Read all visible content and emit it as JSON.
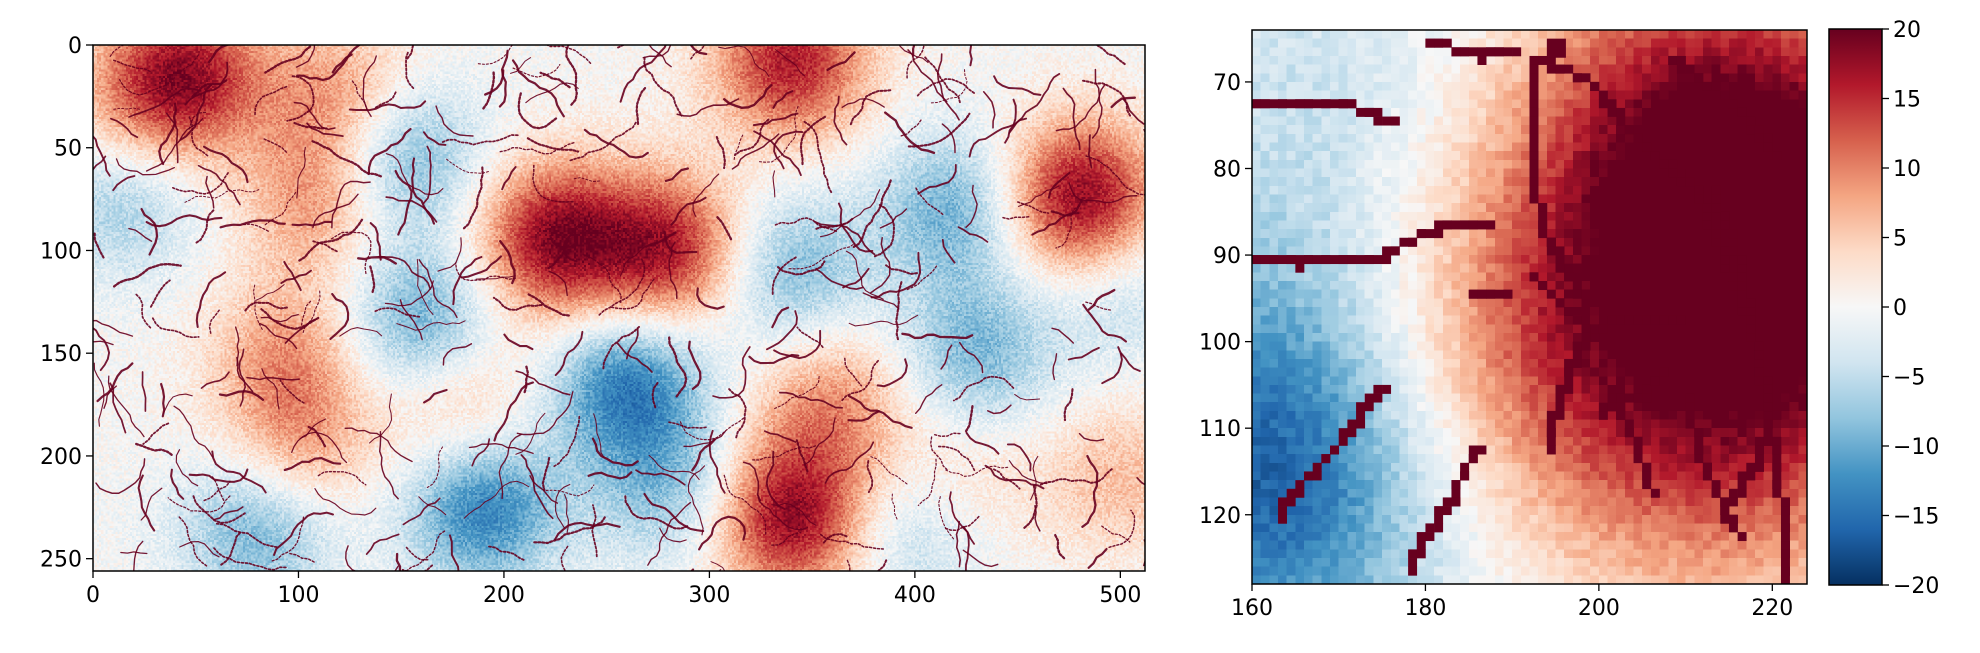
{
  "colormap": {
    "name": "RdBu_r",
    "stops": [
      "#053061",
      "#2166ac",
      "#4393c3",
      "#92c5de",
      "#d1e5f0",
      "#f7f7f7",
      "#fddbc7",
      "#f4a582",
      "#d6604d",
      "#b2182b",
      "#67001f"
    ]
  },
  "chart_data": [
    {
      "type": "heatmap",
      "title": "",
      "xlabel": "",
      "ylabel": "",
      "xlim": [
        0,
        512
      ],
      "ylim": [
        256,
        0
      ],
      "xticks": [
        0,
        100,
        200,
        300,
        400,
        500
      ],
      "yticks": [
        0,
        50,
        100,
        150,
        200,
        250
      ],
      "value_range": [
        -20,
        20
      ],
      "hot_spots": [
        {
          "x": 45,
          "y": 15,
          "v": 16
        },
        {
          "x": 120,
          "y": 25,
          "v": 9
        },
        {
          "x": 340,
          "y": 8,
          "v": 16
        },
        {
          "x": 110,
          "y": 75,
          "v": 9
        },
        {
          "x": 225,
          "y": 95,
          "v": 18
        },
        {
          "x": 280,
          "y": 100,
          "v": 16
        },
        {
          "x": 480,
          "y": 75,
          "v": 19
        },
        {
          "x": 95,
          "y": 150,
          "v": 8
        },
        {
          "x": 180,
          "y": 175,
          "v": 7
        },
        {
          "x": 360,
          "y": 175,
          "v": 9
        },
        {
          "x": 100,
          "y": 195,
          "v": 8
        },
        {
          "x": 340,
          "y": 230,
          "v": 18
        },
        {
          "x": 420,
          "y": 215,
          "v": 5
        },
        {
          "x": 500,
          "y": 210,
          "v": 6
        },
        {
          "x": 20,
          "y": 30,
          "v": 5
        }
      ],
      "cold_spots": [
        {
          "x": 150,
          "y": 55,
          "v": -11
        },
        {
          "x": 15,
          "y": 75,
          "v": -7
        },
        {
          "x": 420,
          "y": 80,
          "v": -10
        },
        {
          "x": 340,
          "y": 110,
          "v": -9
        },
        {
          "x": 160,
          "y": 135,
          "v": -11
        },
        {
          "x": 260,
          "y": 165,
          "v": -14
        },
        {
          "x": 430,
          "y": 150,
          "v": -9
        },
        {
          "x": 190,
          "y": 225,
          "v": -14
        },
        {
          "x": 80,
          "y": 235,
          "v": -10
        },
        {
          "x": 280,
          "y": 215,
          "v": -8
        },
        {
          "x": 400,
          "y": 235,
          "v": -7
        },
        {
          "x": 500,
          "y": 120,
          "v": -5
        }
      ]
    },
    {
      "type": "heatmap",
      "title": "",
      "xlabel": "",
      "ylabel": "",
      "xlim": [
        160,
        224
      ],
      "ylim": [
        128,
        64
      ],
      "xticks": [
        160,
        180,
        200,
        220
      ],
      "yticks": [
        70,
        80,
        90,
        100,
        110,
        120
      ],
      "value_range": [
        -20,
        20
      ],
      "hot_spots": [
        {
          "x": 222,
          "y": 88,
          "v": 17
        },
        {
          "x": 190,
          "y": 100,
          "v": 10
        },
        {
          "x": 210,
          "y": 75,
          "v": 13
        },
        {
          "x": 215,
          "y": 110,
          "v": 11
        }
      ],
      "cold_spots": [
        {
          "x": 162,
          "y": 118,
          "v": -14
        },
        {
          "x": 170,
          "y": 70,
          "v": -4
        },
        {
          "x": 165,
          "y": 100,
          "v": -6
        }
      ],
      "channels": [
        [
          [
            160,
            72
          ],
          [
            170,
            72
          ],
          [
            177,
            75
          ]
        ],
        [
          [
            160,
            90
          ],
          [
            165,
            91
          ],
          [
            175,
            90
          ],
          [
            181,
            87
          ],
          [
            188,
            86
          ]
        ],
        [
          [
            192,
            92
          ],
          [
            198,
            98
          ]
        ],
        [
          [
            185,
            94
          ],
          [
            190,
            95
          ]
        ],
        [
          [
            163,
            120
          ],
          [
            167,
            115
          ],
          [
            172,
            109
          ],
          [
            175,
            105
          ]
        ],
        [
          [
            178,
            126
          ],
          [
            183,
            118
          ],
          [
            186,
            112
          ]
        ],
        [
          [
            200,
            108
          ],
          [
            205,
            106
          ],
          [
            208,
            103
          ]
        ],
        [
          [
            194,
            112
          ],
          [
            196,
            105
          ],
          [
            198,
            100
          ],
          [
            203,
            97
          ],
          [
            210,
            98
          ]
        ],
        [
          [
            214,
            120
          ],
          [
            218,
            114
          ],
          [
            220,
            108
          ],
          [
            218,
            100
          ],
          [
            215,
            92
          ],
          [
            211,
            82
          ],
          [
            205,
            77
          ],
          [
            199,
            70
          ],
          [
            192,
            67
          ]
        ],
        [
          [
            222,
            128
          ],
          [
            221,
            118
          ],
          [
            219,
            105
          ],
          [
            216,
            90
          ],
          [
            213,
            82
          ]
        ],
        [
          [
            208,
            67
          ],
          [
            215,
            72
          ],
          [
            220,
            78
          ]
        ],
        [
          [
            192,
            68
          ],
          [
            192,
            80
          ],
          [
            194,
            88
          ],
          [
            198,
            95
          ]
        ],
        [
          [
            201,
            106
          ],
          [
            204,
            111
          ],
          [
            206,
            117
          ]
        ],
        [
          [
            180,
            65
          ],
          [
            186,
            67
          ],
          [
            190,
            66
          ]
        ],
        [
          [
            210,
            106
          ],
          [
            212,
            114
          ],
          [
            216,
            122
          ]
        ]
      ],
      "sinks": [
        {
          "x": 195,
          "y": 66
        }
      ]
    },
    {
      "type": "colorbar",
      "range": [
        -20,
        20
      ],
      "ticks": [
        20,
        15,
        10,
        5,
        0,
        -5,
        -10,
        -15,
        -20
      ],
      "tick_labels": [
        "20",
        "15",
        "10",
        "5",
        "0",
        "−5",
        "−10",
        "−15",
        "−20"
      ]
    }
  ]
}
